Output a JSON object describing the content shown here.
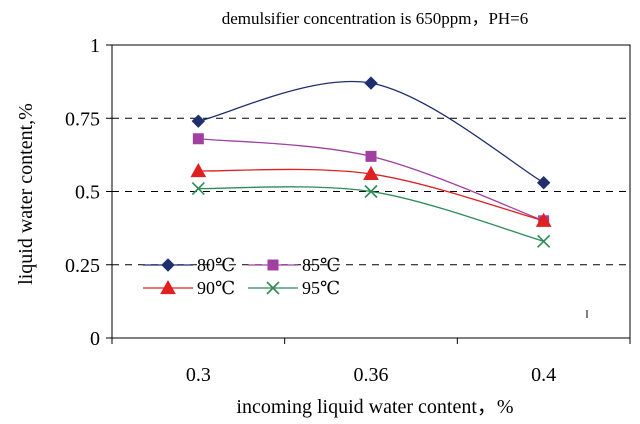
{
  "chart_data": {
    "type": "line",
    "title": "demulsifier concentration is 650ppm，PH=6",
    "xlabel": "incoming liquid water content，%",
    "ylabel": "liquid water content,%",
    "categories": [
      "0.3",
      "0.36",
      "0.4"
    ],
    "ylim": [
      0,
      1
    ],
    "yticks": [
      "0",
      "0.25",
      "0.5",
      "0.75",
      "1"
    ],
    "grid": "horizontal dashed",
    "legend_position": "lower-left",
    "series": [
      {
        "name": "80℃",
        "values": [
          0.74,
          0.87,
          0.53
        ],
        "color": "#1f2f6e",
        "marker": "diamond"
      },
      {
        "name": "85℃",
        "values": [
          0.68,
          0.62,
          0.4
        ],
        "color": "#a040a0",
        "marker": "square"
      },
      {
        "name": "90℃",
        "values": [
          0.57,
          0.56,
          0.4
        ],
        "color": "#e02020",
        "marker": "triangle"
      },
      {
        "name": "95℃",
        "values": [
          0.51,
          0.5,
          0.33
        ],
        "color": "#2e8b57",
        "marker": "x"
      }
    ]
  }
}
